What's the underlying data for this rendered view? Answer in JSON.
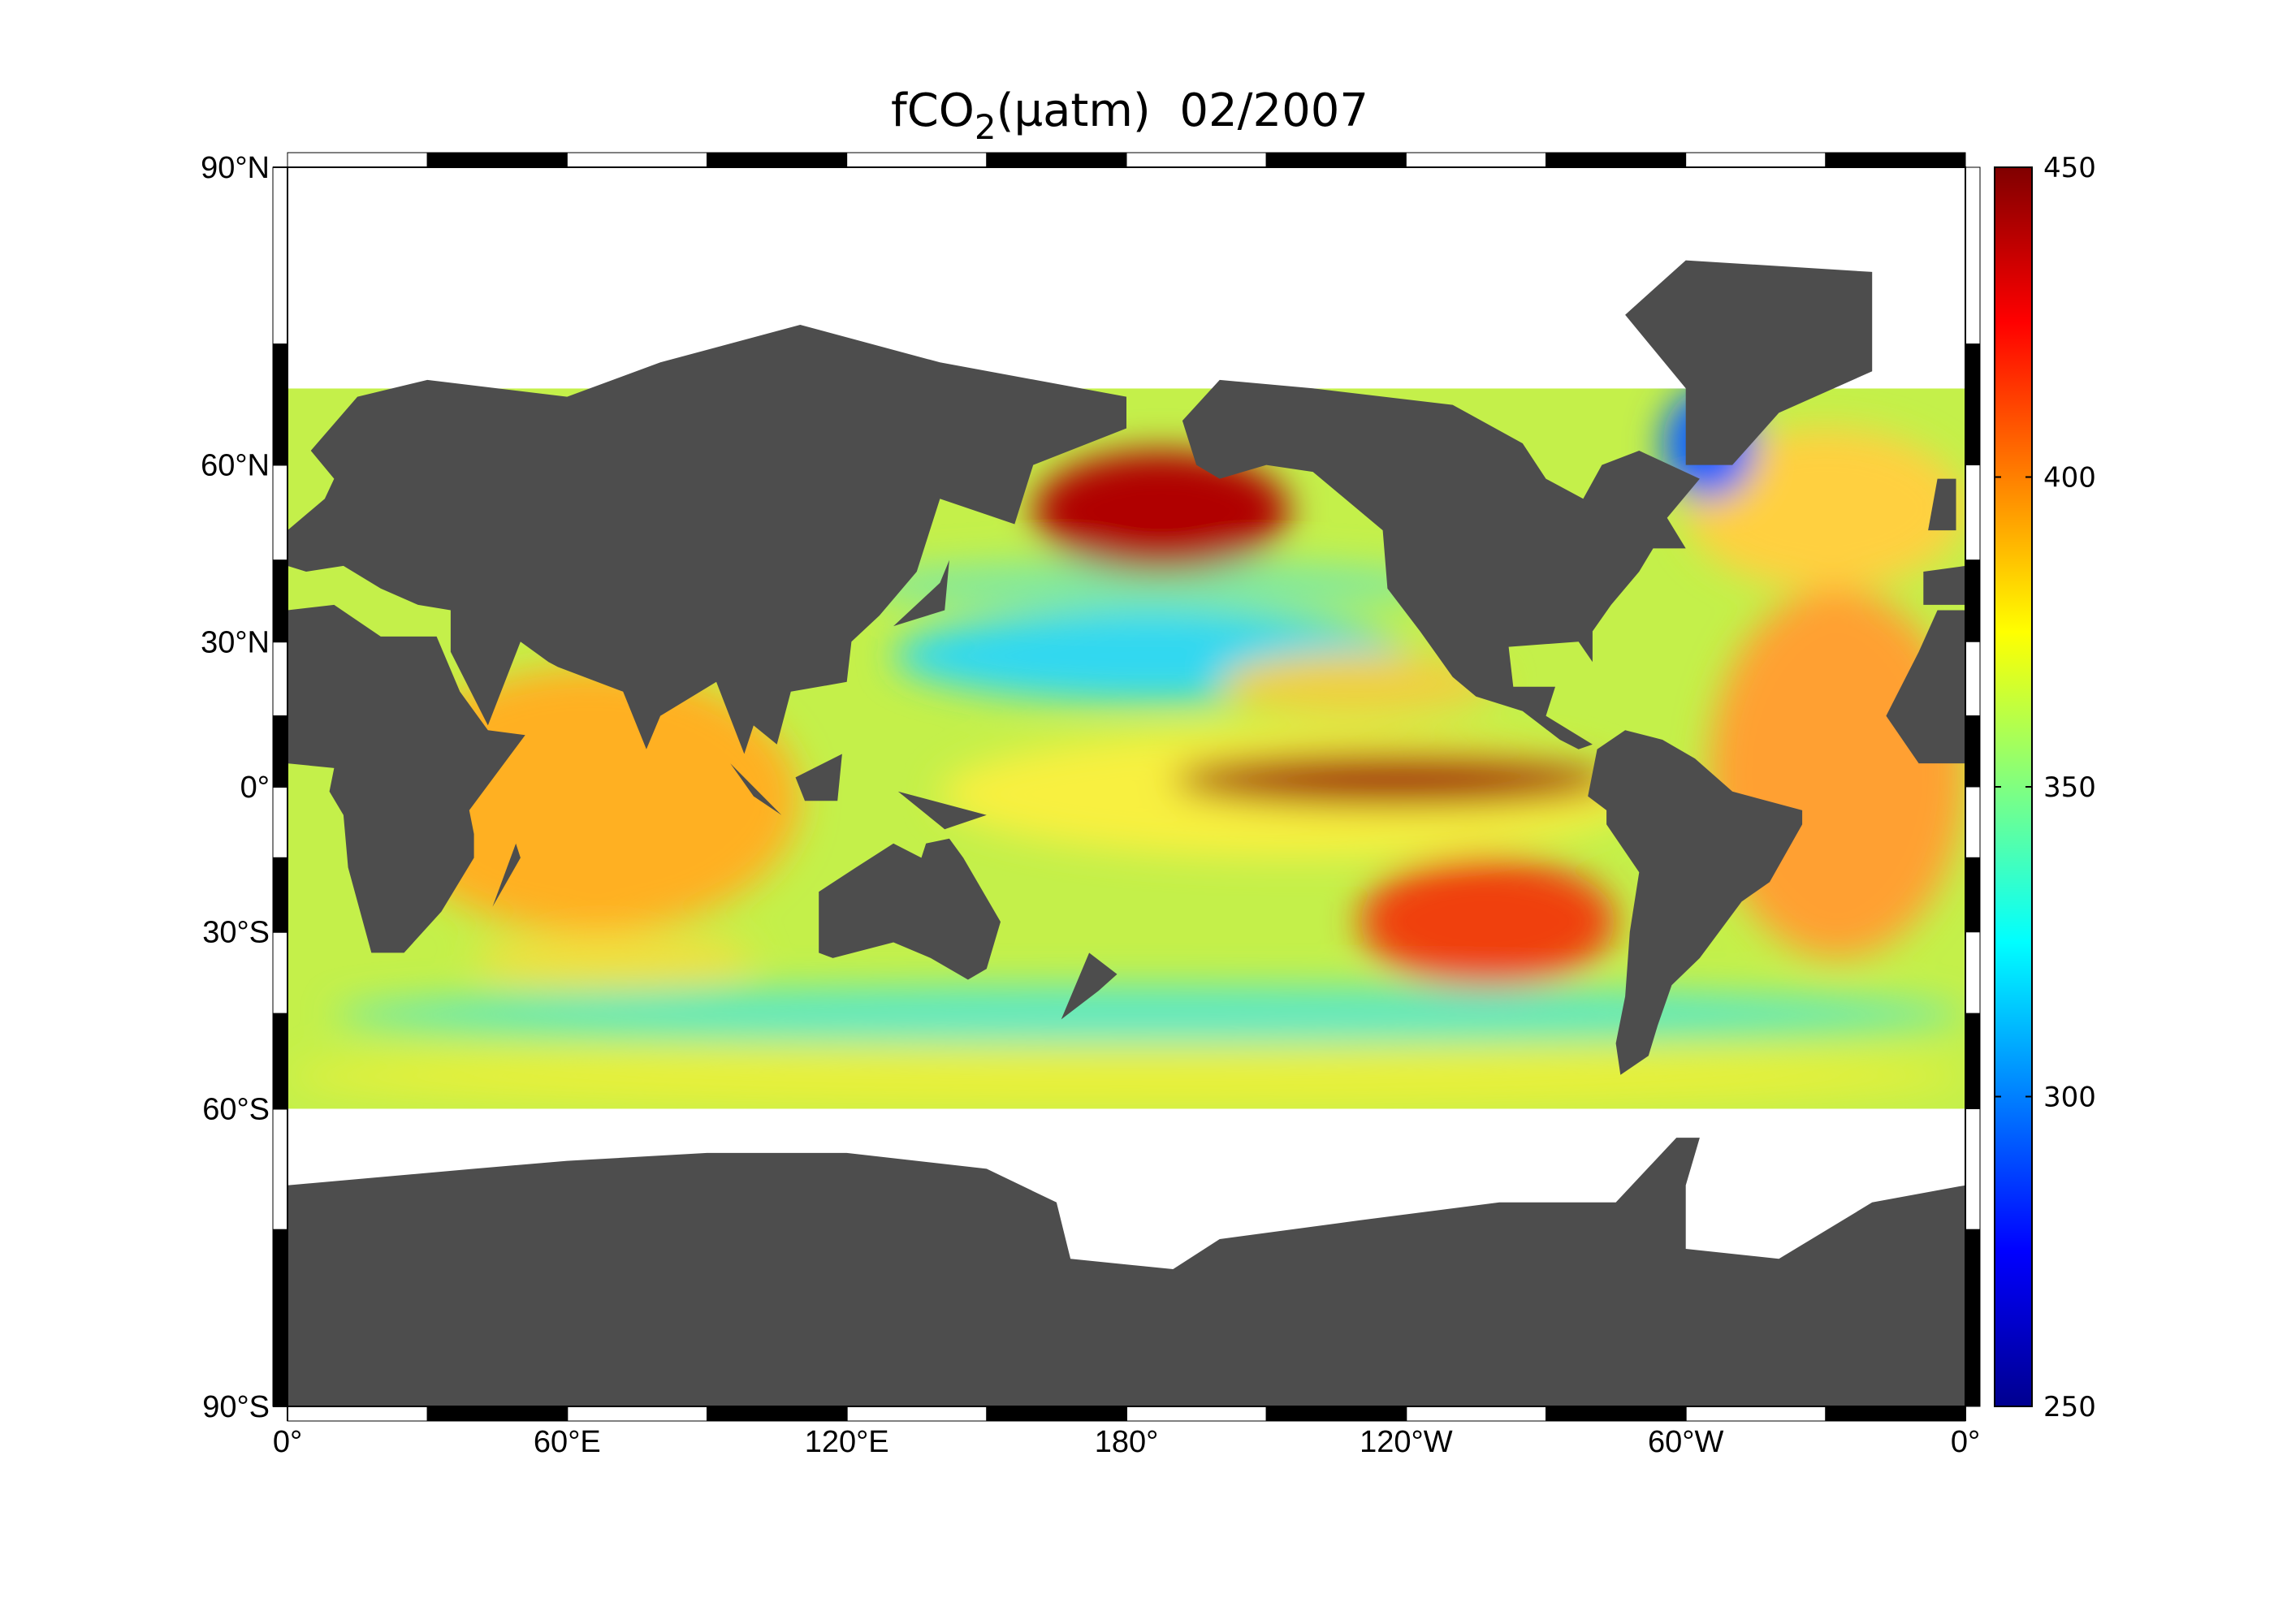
{
  "map": {
    "title": {
      "main": "fCO",
      "subscript": "2",
      "rest": "(µatm)  02/2007"
    },
    "projection": "miller",
    "lonlim": [
      0,
      360
    ],
    "latlim": [
      -90,
      90
    ],
    "lat_ticks": [
      {
        "value": 90,
        "label": "90°N"
      },
      {
        "value": 60,
        "label": "60°N"
      },
      {
        "value": 30,
        "label": "30°N"
      },
      {
        "value": 0,
        "label": "0°"
      },
      {
        "value": -30,
        "label": "30°S"
      },
      {
        "value": -60,
        "label": "60°S"
      },
      {
        "value": -90,
        "label": "90°S"
      }
    ],
    "lon_ticks": [
      {
        "value": 0,
        "label": "0°"
      },
      {
        "value": 60,
        "label": "60°E"
      },
      {
        "value": 120,
        "label": "120°E"
      },
      {
        "value": 180,
        "label": "180°"
      },
      {
        "value": 240,
        "label": "120°W"
      },
      {
        "value": 300,
        "label": "60°W"
      },
      {
        "value": 360,
        "label": "0°"
      }
    ],
    "colorbar": {
      "lim": [
        250,
        450
      ],
      "ticks": [
        250,
        300,
        350,
        400,
        450
      ]
    }
  }
}
